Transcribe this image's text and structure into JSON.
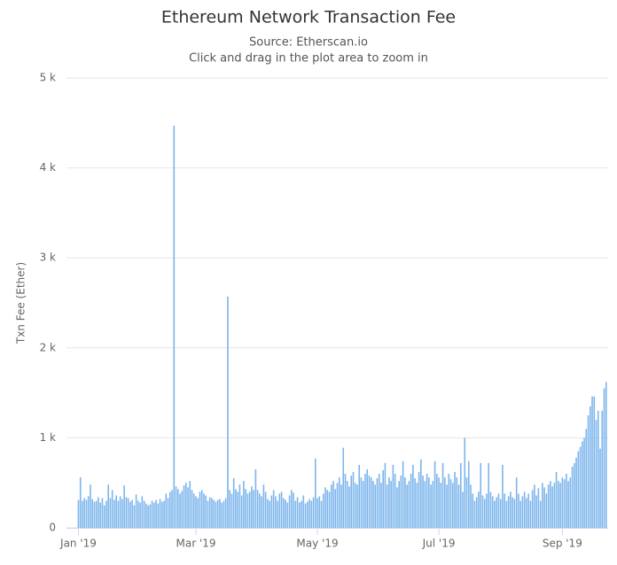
{
  "chart_data": {
    "type": "bar",
    "title": "Ethereum Network Transaction Fee",
    "subtitle": [
      "Source: Etherscan.io",
      "Click and drag in the plot area to zoom in"
    ],
    "y_label": "Txn Fee (Ether)",
    "color": "#7cb5ec",
    "grid": true,
    "xlim": [
      -6,
      266
    ],
    "xticks": [
      {
        "value": 0,
        "label": "Jan '19"
      },
      {
        "value": 59,
        "label": "Mar '19"
      },
      {
        "value": 120,
        "label": "May '19"
      },
      {
        "value": 181,
        "label": "Jul '19"
      },
      {
        "value": 243,
        "label": "Sep '19"
      }
    ],
    "ylim": [
      0,
      5000
    ],
    "yticks": [
      {
        "value": 0,
        "label": "0"
      },
      {
        "value": 1000,
        "label": "1 k"
      },
      {
        "value": 2000,
        "label": "2 k"
      },
      {
        "value": 3000,
        "label": "3 k"
      },
      {
        "value": 4000,
        "label": "4 k"
      },
      {
        "value": 5000,
        "label": "5 k"
      }
    ],
    "x": [
      0,
      1,
      2,
      3,
      4,
      5,
      6,
      7,
      8,
      9,
      10,
      11,
      12,
      13,
      14,
      15,
      16,
      17,
      18,
      19,
      20,
      21,
      22,
      23,
      24,
      25,
      26,
      27,
      28,
      29,
      30,
      31,
      32,
      33,
      34,
      35,
      36,
      37,
      38,
      39,
      40,
      41,
      42,
      43,
      44,
      45,
      46,
      47,
      48,
      49,
      50,
      51,
      52,
      53,
      54,
      55,
      56,
      57,
      58,
      59,
      60,
      61,
      62,
      63,
      64,
      65,
      66,
      67,
      68,
      69,
      70,
      71,
      72,
      73,
      74,
      75,
      76,
      77,
      78,
      79,
      80,
      81,
      82,
      83,
      84,
      85,
      86,
      87,
      88,
      89,
      90,
      91,
      92,
      93,
      94,
      95,
      96,
      97,
      98,
      99,
      100,
      101,
      102,
      103,
      104,
      105,
      106,
      107,
      108,
      109,
      110,
      111,
      112,
      113,
      114,
      115,
      116,
      117,
      118,
      119,
      120,
      121,
      122,
      123,
      124,
      125,
      126,
      127,
      128,
      129,
      130,
      131,
      132,
      133,
      134,
      135,
      136,
      137,
      138,
      139,
      140,
      141,
      142,
      143,
      144,
      145,
      146,
      147,
      148,
      149,
      150,
      151,
      152,
      153,
      154,
      155,
      156,
      157,
      158,
      159,
      160,
      161,
      162,
      163,
      164,
      165,
      166,
      167,
      168,
      169,
      170,
      171,
      172,
      173,
      174,
      175,
      176,
      177,
      178,
      179,
      180,
      181,
      182,
      183,
      184,
      185,
      186,
      187,
      188,
      189,
      190,
      191,
      192,
      193,
      194,
      195,
      196,
      197,
      198,
      199,
      200,
      201,
      202,
      203,
      204,
      205,
      206,
      207,
      208,
      209,
      210,
      211,
      212,
      213,
      214,
      215,
      216,
      217,
      218,
      219,
      220,
      221,
      222,
      223,
      224,
      225,
      226,
      227,
      228,
      229,
      230,
      231,
      232,
      233,
      234,
      235,
      236,
      237,
      238,
      239,
      240,
      241,
      242,
      243,
      244,
      245,
      246,
      247,
      248,
      249,
      250,
      251,
      252,
      253,
      254,
      255,
      256,
      257,
      258,
      259,
      260,
      261,
      262,
      263,
      264,
      265
    ],
    "values": [
      310,
      560,
      300,
      330,
      310,
      350,
      480,
      320,
      290,
      300,
      340,
      280,
      330,
      250,
      300,
      480,
      330,
      420,
      310,
      360,
      300,
      350,
      320,
      470,
      340,
      330,
      290,
      310,
      250,
      370,
      300,
      280,
      350,
      300,
      270,
      250,
      260,
      300,
      280,
      310,
      270,
      320,
      290,
      300,
      380,
      330,
      400,
      420,
      4470,
      460,
      430,
      380,
      410,
      470,
      500,
      450,
      520,
      420,
      380,
      350,
      330,
      400,
      420,
      380,
      360,
      300,
      340,
      330,
      310,
      290,
      310,
      320,
      280,
      300,
      330,
      2570,
      420,
      380,
      550,
      430,
      400,
      480,
      360,
      520,
      430,
      380,
      400,
      460,
      420,
      650,
      420,
      380,
      350,
      480,
      400,
      320,
      300,
      360,
      420,
      350,
      300,
      380,
      400,
      330,
      310,
      280,
      360,
      420,
      390,
      300,
      340,
      280,
      300,
      360,
      270,
      290,
      320,
      300,
      340,
      770,
      330,
      350,
      300,
      380,
      450,
      420,
      400,
      480,
      520,
      430,
      500,
      560,
      480,
      890,
      600,
      520,
      460,
      580,
      620,
      500,
      480,
      700,
      560,
      520,
      600,
      650,
      580,
      560,
      520,
      480,
      550,
      600,
      500,
      640,
      720,
      480,
      560,
      520,
      700,
      600,
      450,
      520,
      580,
      740,
      560,
      480,
      520,
      600,
      700,
      550,
      500,
      620,
      760,
      580,
      520,
      600,
      560,
      480,
      520,
      740,
      600,
      560,
      500,
      720,
      560,
      480,
      600,
      540,
      500,
      620,
      560,
      480,
      720,
      400,
      1000,
      560,
      740,
      480,
      380,
      300,
      340,
      400,
      720,
      360,
      320,
      380,
      720,
      400,
      350,
      300,
      340,
      380,
      320,
      700,
      380,
      300,
      350,
      400,
      340,
      320,
      560,
      380,
      300,
      350,
      400,
      330,
      380,
      300,
      420,
      480,
      360,
      440,
      300,
      500,
      450,
      380,
      480,
      520,
      460,
      500,
      620,
      520,
      500,
      560,
      540,
      600,
      520,
      560,
      680,
      720,
      780,
      850,
      900,
      960,
      1000,
      1100,
      1250,
      1350,
      1460,
      1460,
      1200,
      1300,
      880,
      1300,
      1550,
      1620
    ]
  }
}
